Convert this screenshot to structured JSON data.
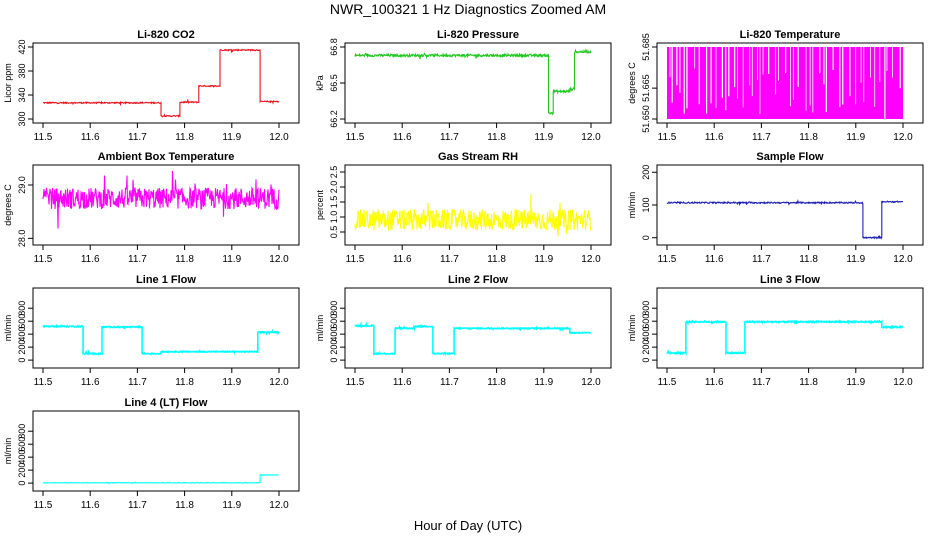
{
  "figure": {
    "title": "NWR_100321  1 Hz Diagnostics Zoomed AM",
    "xlabel": "Hour of Day (UTC)"
  },
  "chart_data": [
    {
      "type": "line",
      "title": "Li-820 CO2",
      "ylabel": "Licor ppm",
      "color": "#e8141e",
      "xlim": [
        11.5,
        12.0
      ],
      "xticks": [
        "11.5",
        "11.6",
        "11.7",
        "11.8",
        "11.9",
        "12.0"
      ],
      "ylim": [
        300,
        420
      ],
      "yticks": [
        "300",
        "340",
        "380",
        "420"
      ],
      "noise": 1,
      "segments": [
        {
          "x": [
            11.5,
            11.75
          ],
          "y": 327
        },
        {
          "x": [
            11.75,
            11.79
          ],
          "y": 305
        },
        {
          "x": [
            11.79,
            11.83
          ],
          "y": 328
        },
        {
          "x": [
            11.83,
            11.875
          ],
          "y": 355
        },
        {
          "x": [
            11.875,
            11.96
          ],
          "y": 415
        },
        {
          "x": [
            11.96,
            12.0
          ],
          "y": 329
        }
      ]
    },
    {
      "type": "line",
      "title": "Li-820 Pressure",
      "ylabel": "kPa",
      "color": "#1ec81e",
      "xlim": [
        11.5,
        12.0
      ],
      "xticks": [
        "11.5",
        "11.6",
        "11.7",
        "11.8",
        "11.9",
        "12.0"
      ],
      "ylim": [
        66.2,
        66.8
      ],
      "yticks": [
        "66.2",
        "66.5",
        "66.8"
      ],
      "noise": 0.01,
      "segments": [
        {
          "x": [
            11.5,
            11.91
          ],
          "y": 66.73
        },
        {
          "x": [
            11.91,
            11.92
          ],
          "y": 66.25
        },
        {
          "x": [
            11.92,
            11.955
          ],
          "y": 66.43
        },
        {
          "x": [
            11.955,
            11.965
          ],
          "y": 66.45
        },
        {
          "x": [
            11.965,
            12.0
          ],
          "y": 66.76
        }
      ]
    },
    {
      "type": "area",
      "title": "Li-820 Temperature",
      "ylabel": "degrees C",
      "color": "#ff00ff",
      "xlim": [
        11.5,
        12.0
      ],
      "xticks": [
        "11.5",
        "11.6",
        "11.7",
        "11.8",
        "11.9",
        "12.0"
      ],
      "ylim": [
        51.65,
        51.685
      ],
      "yticks": [
        "51.650",
        "51.665",
        "51.685"
      ],
      "noise": 0,
      "segments": [
        {
          "x": [
            11.5,
            12.0
          ],
          "y": 51.685
        }
      ]
    },
    {
      "type": "line",
      "title": "Ambient Box Temperature",
      "ylabel": "degrees C",
      "color": "#ff00ff",
      "xlim": [
        11.5,
        12.0
      ],
      "xticks": [
        "11.5",
        "11.6",
        "11.7",
        "11.8",
        "11.9",
        "12.0"
      ],
      "ylim": [
        27.95,
        29.3
      ],
      "yticks": [
        "28.0",
        "29.0"
      ],
      "noise": 0.2,
      "segments": [
        {
          "x": [
            11.5,
            12.0
          ],
          "y": 28.75
        }
      ]
    },
    {
      "type": "line",
      "title": "Gas Stream RH",
      "ylabel": "percent",
      "color": "#ffff00",
      "xlim": [
        11.5,
        12.0
      ],
      "xticks": [
        "11.5",
        "11.6",
        "11.7",
        "11.8",
        "11.9",
        "12.0"
      ],
      "ylim": [
        0.2,
        2.6
      ],
      "yticks": [
        "0.5",
        "1.0",
        "1.5",
        "2.0",
        "2.5"
      ],
      "noise": 0.35,
      "segments": [
        {
          "x": [
            11.5,
            12.0
          ],
          "y": 0.9
        }
      ]
    },
    {
      "type": "line",
      "title": "Sample Flow",
      "ylabel": "ml/min",
      "color": "#1e1eb4",
      "xlim": [
        11.5,
        12.0
      ],
      "xticks": [
        "11.5",
        "11.6",
        "11.7",
        "11.8",
        "11.9",
        "12.0"
      ],
      "ylim": [
        -10,
        210
      ],
      "yticks": [
        "0",
        "100",
        "200"
      ],
      "noise": 2,
      "segments": [
        {
          "x": [
            11.5,
            11.915
          ],
          "y": 107
        },
        {
          "x": [
            11.915,
            11.955
          ],
          "y": 0
        },
        {
          "x": [
            11.955,
            12.0
          ],
          "y": 110
        }
      ]
    },
    {
      "type": "line",
      "title": "Line 1 Flow",
      "ylabel": "ml/min",
      "color": "#00ffff",
      "xlim": [
        11.5,
        12.0
      ],
      "xticks": [
        "11.5",
        "11.6",
        "11.7",
        "11.8",
        "11.9",
        "12.0"
      ],
      "ylim": [
        -60,
        1050
      ],
      "yticks": [
        "0",
        "200",
        "400",
        "600",
        "800"
      ],
      "noise": 8,
      "segments": [
        {
          "x": [
            11.5,
            11.585
          ],
          "y": 520
        },
        {
          "x": [
            11.585,
            11.625
          ],
          "y": 100
        },
        {
          "x": [
            11.625,
            11.71
          ],
          "y": 510
        },
        {
          "x": [
            11.71,
            11.75
          ],
          "y": 100
        },
        {
          "x": [
            11.75,
            11.955
          ],
          "y": 130
        },
        {
          "x": [
            11.955,
            12.0
          ],
          "y": 430
        }
      ]
    },
    {
      "type": "line",
      "title": "Line 2 Flow",
      "ylabel": "ml/min",
      "color": "#00ffff",
      "xlim": [
        11.5,
        12.0
      ],
      "xticks": [
        "11.5",
        "11.6",
        "11.7",
        "11.8",
        "11.9",
        "12.0"
      ],
      "ylim": [
        -60,
        1050
      ],
      "yticks": [
        "0",
        "200",
        "400",
        "600",
        "800"
      ],
      "noise": 8,
      "segments": [
        {
          "x": [
            11.5,
            11.54
          ],
          "y": 530
        },
        {
          "x": [
            11.54,
            11.585
          ],
          "y": 100
        },
        {
          "x": [
            11.585,
            11.625
          ],
          "y": 490
        },
        {
          "x": [
            11.625,
            11.665
          ],
          "y": 520
        },
        {
          "x": [
            11.665,
            11.71
          ],
          "y": 100
        },
        {
          "x": [
            11.71,
            11.955
          ],
          "y": 490
        },
        {
          "x": [
            11.955,
            12.0
          ],
          "y": 420
        }
      ]
    },
    {
      "type": "line",
      "title": "Line 3 Flow",
      "ylabel": "ml/min",
      "color": "#00ffff",
      "xlim": [
        11.5,
        12.0
      ],
      "xticks": [
        "11.5",
        "11.6",
        "11.7",
        "11.8",
        "11.9",
        "12.0"
      ],
      "ylim": [
        -60,
        1050
      ],
      "yticks": [
        "0",
        "200",
        "400",
        "600",
        "800"
      ],
      "noise": 10,
      "segments": [
        {
          "x": [
            11.5,
            11.54
          ],
          "y": 110
        },
        {
          "x": [
            11.54,
            11.625
          ],
          "y": 590
        },
        {
          "x": [
            11.625,
            11.665
          ],
          "y": 110
        },
        {
          "x": [
            11.665,
            11.955
          ],
          "y": 590
        },
        {
          "x": [
            11.955,
            12.0
          ],
          "y": 510
        }
      ]
    },
    {
      "type": "line",
      "title": "Line 4 (LT) Flow",
      "ylabel": "ml/min",
      "color": "#00ffff",
      "xlim": [
        11.5,
        12.0
      ],
      "xticks": [
        "11.5",
        "11.6",
        "11.7",
        "11.8",
        "11.9",
        "12.0"
      ],
      "ylim": [
        -60,
        1050
      ],
      "yticks": [
        "0",
        "200",
        "400",
        "600",
        "800"
      ],
      "noise": 3,
      "segments": [
        {
          "x": [
            11.5,
            11.96
          ],
          "y": 5
        },
        {
          "x": [
            11.96,
            12.0
          ],
          "y": 125
        }
      ]
    }
  ]
}
